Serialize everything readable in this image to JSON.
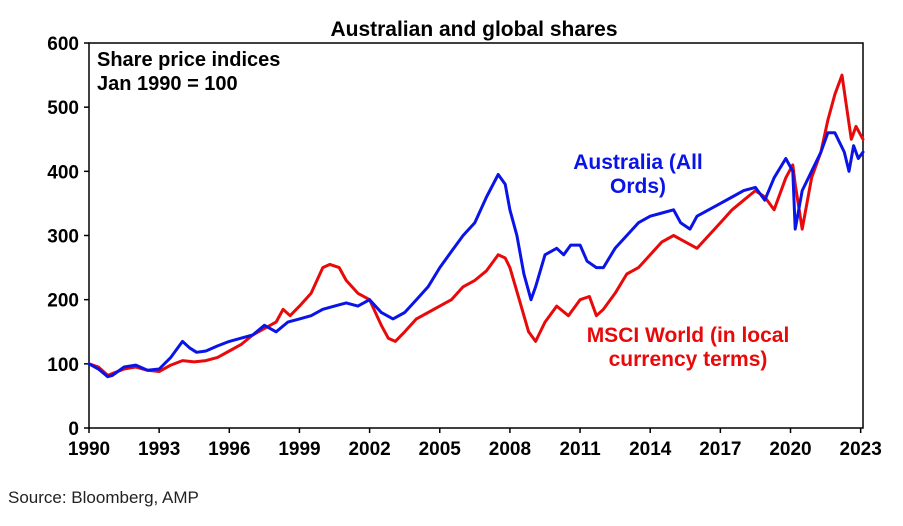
{
  "chart_data": {
    "type": "line",
    "title": "Australian and global shares",
    "annotation": [
      "Share price indices",
      "Jan 1990 = 100"
    ],
    "xlabel": "",
    "ylabel": "",
    "xlim": [
      1990,
      2023.1
    ],
    "ylim": [
      0,
      600
    ],
    "x_ticks": [
      "1990",
      "1993",
      "1996",
      "1999",
      "2002",
      "2005",
      "2008",
      "2011",
      "2014",
      "2017",
      "2020",
      "2023"
    ],
    "y_ticks": [
      "0",
      "100",
      "200",
      "300",
      "400",
      "500",
      "600"
    ],
    "grid": false,
    "legend": "inline labels",
    "series": [
      {
        "name": "Australia (All Ords)",
        "label_lines": [
          "Australia (All",
          "Ords)"
        ],
        "color": "#0a14e6",
        "x": [
          1990,
          1990.4,
          1990.8,
          1991,
          1991.5,
          1992,
          1992.5,
          1993,
          1993.5,
          1994,
          1994.3,
          1994.6,
          1995,
          1995.5,
          1996,
          1996.5,
          1997,
          1997.5,
          1998,
          1998.5,
          1999,
          1999.5,
          2000,
          2000.5,
          2001,
          2001.5,
          2002,
          2002.5,
          2003,
          2003.5,
          2004,
          2004.5,
          2005,
          2005.5,
          2006,
          2006.5,
          2007,
          2007.5,
          2007.8,
          2008,
          2008.3,
          2008.6,
          2008.9,
          2009.1,
          2009.5,
          2010,
          2010.3,
          2010.6,
          2011,
          2011.3,
          2011.7,
          2012,
          2012.5,
          2013,
          2013.5,
          2014,
          2014.5,
          2015,
          2015.3,
          2015.7,
          2016,
          2016.5,
          2017,
          2017.5,
          2018,
          2018.5,
          2018.9,
          2019.3,
          2019.8,
          2020.1,
          2020.2,
          2020.5,
          2020.9,
          2021.3,
          2021.6,
          2021.9,
          2022.3,
          2022.5,
          2022.7,
          2022.9,
          2023.1
        ],
        "values": [
          100,
          92,
          80,
          82,
          95,
          98,
          90,
          92,
          110,
          135,
          125,
          118,
          120,
          128,
          135,
          140,
          145,
          160,
          150,
          165,
          170,
          175,
          185,
          190,
          195,
          190,
          200,
          180,
          170,
          180,
          200,
          220,
          250,
          275,
          300,
          320,
          360,
          395,
          380,
          340,
          300,
          240,
          200,
          220,
          270,
          280,
          270,
          285,
          285,
          260,
          250,
          250,
          280,
          300,
          320,
          330,
          335,
          340,
          320,
          310,
          330,
          340,
          350,
          360,
          370,
          375,
          355,
          390,
          420,
          400,
          310,
          370,
          400,
          430,
          460,
          460,
          430,
          400,
          440,
          420,
          430
        ]
      },
      {
        "name": "MSCI World (in local currency terms)",
        "label_lines": [
          "MSCI World (in local",
          "currency terms)"
        ],
        "color": "#e80a0a",
        "x": [
          1990,
          1990.4,
          1990.8,
          1991,
          1991.5,
          1992,
          1992.5,
          1993,
          1993.5,
          1994,
          1994.5,
          1995,
          1995.5,
          1996,
          1996.5,
          1997,
          1997.5,
          1998,
          1998.3,
          1998.6,
          1999,
          1999.5,
          2000,
          2000.3,
          2000.7,
          2001,
          2001.5,
          2002,
          2002.5,
          2002.8,
          2003.1,
          2003.5,
          2004,
          2004.5,
          2005,
          2005.5,
          2006,
          2006.5,
          2007,
          2007.5,
          2007.8,
          2008,
          2008.4,
          2008.8,
          2009.1,
          2009.5,
          2010,
          2010.5,
          2011,
          2011.4,
          2011.7,
          2012,
          2012.5,
          2013,
          2013.5,
          2014,
          2014.5,
          2015,
          2015.5,
          2016,
          2016.5,
          2017,
          2017.5,
          2018,
          2018.5,
          2018.9,
          2019.3,
          2019.8,
          2020.1,
          2020.2,
          2020.5,
          2020.9,
          2021.3,
          2021.6,
          2021.9,
          2022.2,
          2022.4,
          2022.6,
          2022.8,
          2023.1
        ],
        "values": [
          100,
          95,
          82,
          85,
          92,
          95,
          90,
          88,
          98,
          105,
          103,
          105,
          110,
          120,
          130,
          145,
          155,
          165,
          185,
          175,
          190,
          210,
          250,
          255,
          250,
          230,
          210,
          200,
          160,
          140,
          135,
          150,
          170,
          180,
          190,
          200,
          220,
          230,
          245,
          270,
          265,
          250,
          200,
          150,
          135,
          165,
          190,
          175,
          200,
          205,
          175,
          185,
          210,
          240,
          250,
          270,
          290,
          300,
          290,
          280,
          300,
          320,
          340,
          355,
          370,
          360,
          340,
          390,
          410,
          380,
          310,
          390,
          430,
          480,
          520,
          550,
          500,
          450,
          470,
          450
        ]
      }
    ]
  },
  "source": "Source: Bloomberg, AMP"
}
